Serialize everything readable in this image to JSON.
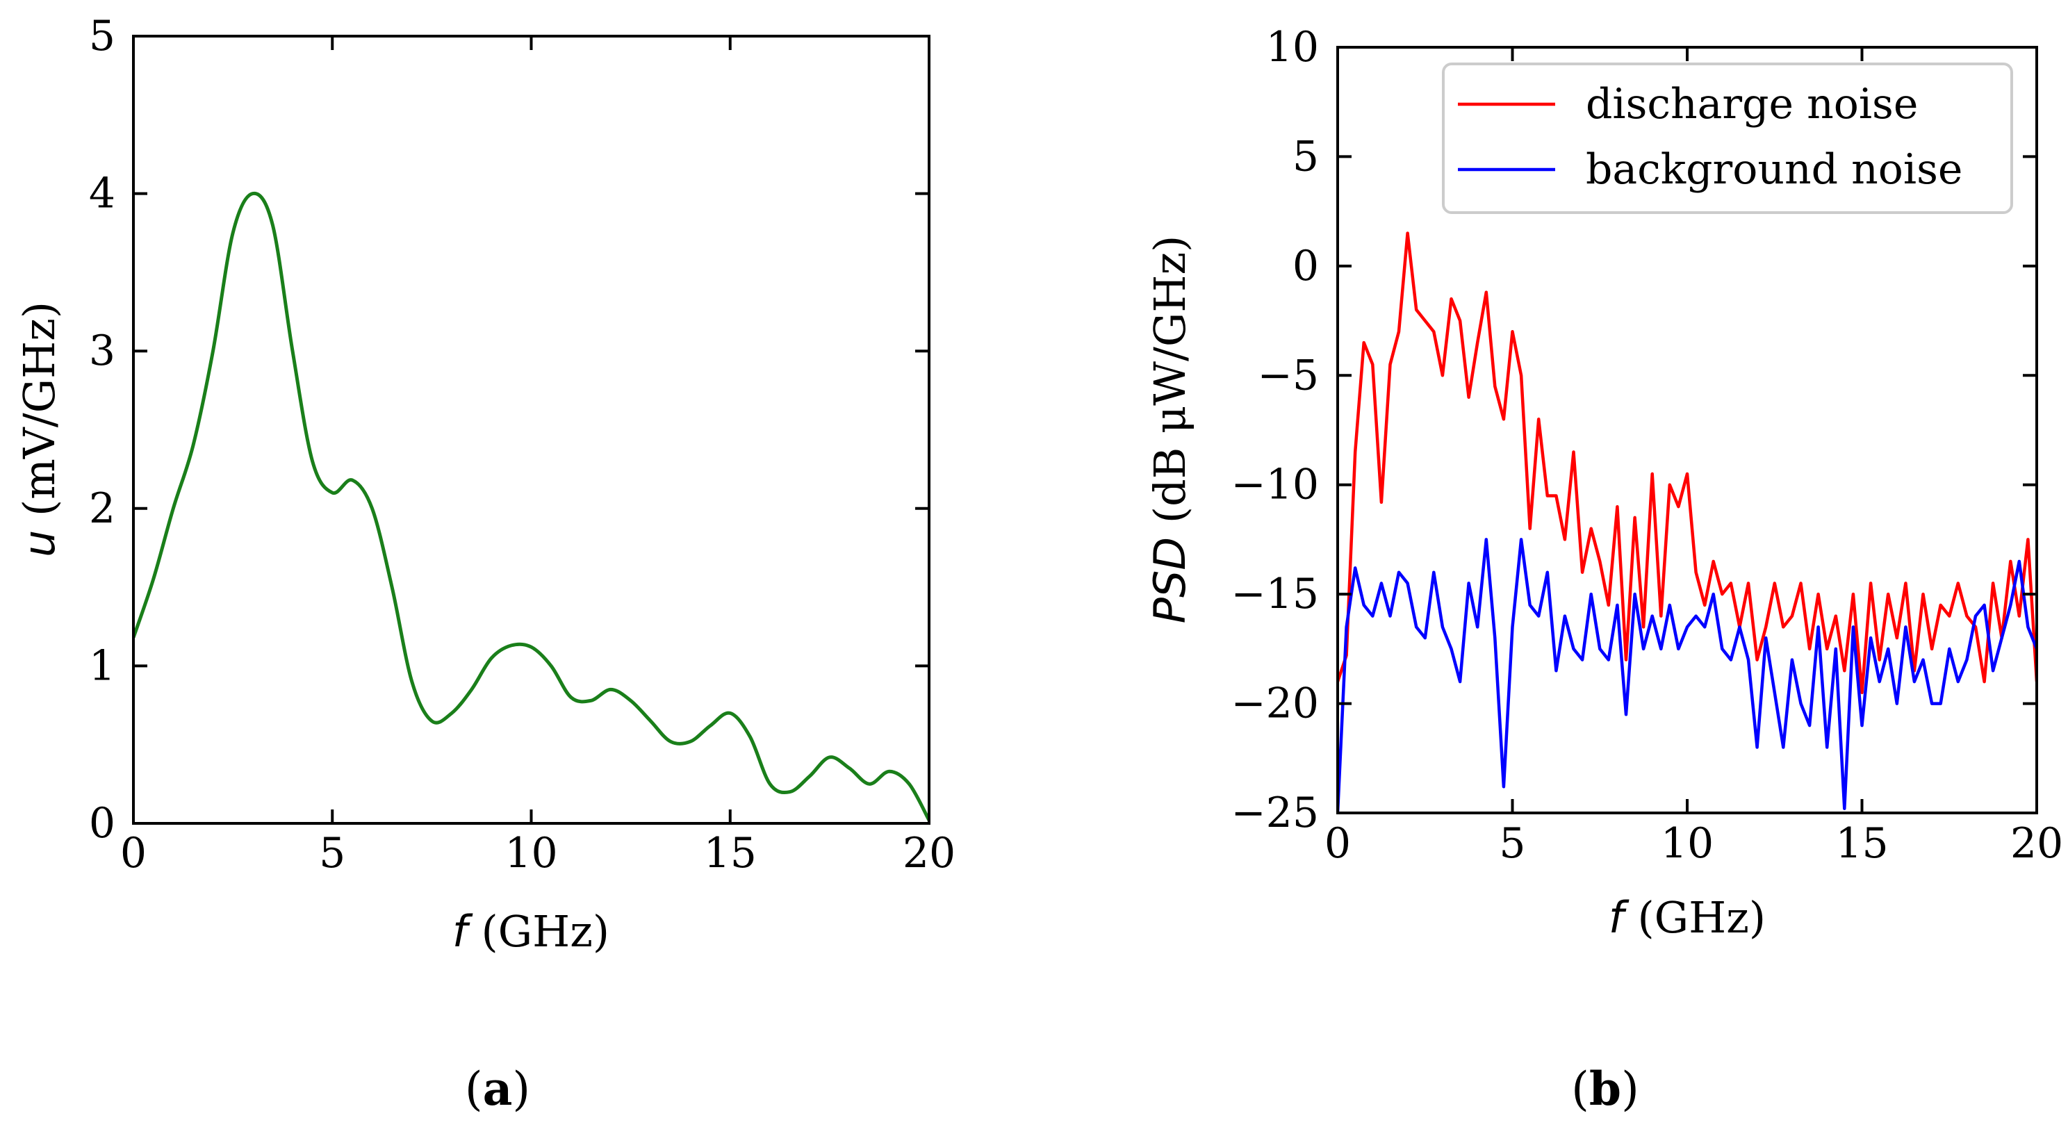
{
  "chart_data": [
    {
      "id": "a",
      "type": "line",
      "panel_label": {
        "open": "(",
        "letter": "a",
        "close": ")"
      },
      "xlabel": {
        "symbol": "f",
        "unit": " (GHz)"
      },
      "ylabel": {
        "symbol": "u",
        "unit": " (mV/GHz)"
      },
      "xlim": [
        0,
        20
      ],
      "ylim": [
        0,
        5
      ],
      "xticks": [
        0,
        5,
        10,
        15,
        20
      ],
      "yticks": [
        0,
        1,
        2,
        3,
        4,
        5
      ],
      "xtick_labels": [
        "0",
        "5",
        "10",
        "15",
        "20"
      ],
      "ytick_labels": [
        "0",
        "1",
        "2",
        "3",
        "4",
        "5"
      ],
      "grid": false,
      "series": [
        {
          "name": "u",
          "color": "#1a7f1a",
          "x": [
            0,
            0.5,
            1,
            1.5,
            2,
            2.5,
            3,
            3.5,
            4,
            4.5,
            5,
            5.5,
            6,
            6.5,
            7,
            7.5,
            8,
            8.5,
            9,
            9.5,
            10,
            10.5,
            11,
            11.5,
            12,
            12.5,
            13,
            13.5,
            14,
            14.5,
            15,
            15.5,
            16,
            16.5,
            17,
            17.5,
            18,
            18.5,
            19,
            19.5,
            20
          ],
          "y": [
            1.18,
            1.55,
            2.0,
            2.4,
            3.0,
            3.75,
            4.0,
            3.8,
            3.0,
            2.3,
            2.1,
            2.18,
            2.0,
            1.5,
            0.9,
            0.65,
            0.7,
            0.85,
            1.05,
            1.13,
            1.12,
            1.0,
            0.8,
            0.78,
            0.85,
            0.78,
            0.65,
            0.52,
            0.52,
            0.62,
            0.7,
            0.55,
            0.25,
            0.2,
            0.3,
            0.42,
            0.35,
            0.25,
            0.33,
            0.25,
            0.02
          ]
        }
      ]
    },
    {
      "id": "b",
      "type": "line",
      "panel_label": {
        "open": "(",
        "letter": "b",
        "close": ")"
      },
      "xlabel": {
        "symbol": "f",
        "unit": " (GHz)"
      },
      "ylabel": {
        "symbol": "PSD",
        "unit": " (dB μW/GHz)"
      },
      "xlim": [
        0,
        20
      ],
      "ylim": [
        -25,
        10
      ],
      "xticks": [
        0,
        5,
        10,
        15,
        20
      ],
      "yticks": [
        -25,
        -20,
        -15,
        -10,
        -5,
        0,
        5,
        10
      ],
      "xtick_labels": [
        "0",
        "5",
        "10",
        "15",
        "20"
      ],
      "ytick_labels": [
        "−25",
        "−20",
        "−15",
        "−10",
        "−5",
        "0",
        "5",
        "10"
      ],
      "grid": false,
      "legend": {
        "position": "top-right"
      },
      "series": [
        {
          "name": "discharge noise",
          "color": "#ff0000",
          "x": [
            0,
            0.25,
            0.5,
            0.75,
            1,
            1.25,
            1.5,
            1.75,
            2,
            2.25,
            2.5,
            2.75,
            3,
            3.25,
            3.5,
            3.75,
            4,
            4.25,
            4.5,
            4.75,
            5,
            5.25,
            5.5,
            5.75,
            6,
            6.25,
            6.5,
            6.75,
            7,
            7.25,
            7.5,
            7.75,
            8,
            8.25,
            8.5,
            8.75,
            9,
            9.25,
            9.5,
            9.75,
            10,
            10.25,
            10.5,
            10.75,
            11,
            11.25,
            11.5,
            11.75,
            12,
            12.25,
            12.5,
            12.75,
            13,
            13.25,
            13.5,
            13.75,
            14,
            14.25,
            14.5,
            14.75,
            15,
            15.25,
            15.5,
            15.75,
            16,
            16.25,
            16.5,
            16.75,
            17,
            17.25,
            17.5,
            17.75,
            18,
            18.25,
            18.5,
            18.75,
            19,
            19.25,
            19.5,
            19.75,
            20
          ],
          "y": [
            -19,
            -17.8,
            -8.5,
            -3.5,
            -4.5,
            -10.8,
            -4.5,
            -3.0,
            1.5,
            -2.0,
            -2.5,
            -3.0,
            -5.0,
            -1.5,
            -2.5,
            -6.0,
            -3.5,
            -1.2,
            -5.5,
            -7.0,
            -3.0,
            -5.0,
            -12.0,
            -7.0,
            -10.5,
            -10.5,
            -12.5,
            -8.5,
            -14.0,
            -12.0,
            -13.5,
            -15.5,
            -11.0,
            -18.0,
            -11.5,
            -16.5,
            -9.5,
            -16.0,
            -10.0,
            -11.0,
            -9.5,
            -14.0,
            -15.5,
            -13.5,
            -15.0,
            -14.5,
            -16.5,
            -14.5,
            -18.0,
            -16.5,
            -14.5,
            -16.5,
            -16.0,
            -14.5,
            -17.5,
            -15.0,
            -17.5,
            -16.0,
            -18.5,
            -15.0,
            -19.5,
            -14.5,
            -18.0,
            -15.0,
            -17.0,
            -14.5,
            -18.5,
            -15.0,
            -17.5,
            -15.5,
            -16.0,
            -14.5,
            -16.0,
            -16.5,
            -19.0,
            -14.5,
            -17.0,
            -13.5,
            -16.0,
            -12.5,
            -19.0
          ]
        },
        {
          "name": "background noise",
          "color": "#0000ff",
          "x": [
            0,
            0.25,
            0.5,
            0.75,
            1,
            1.25,
            1.5,
            1.75,
            2,
            2.25,
            2.5,
            2.75,
            3,
            3.25,
            3.5,
            3.75,
            4,
            4.25,
            4.5,
            4.75,
            5,
            5.25,
            5.5,
            5.75,
            6,
            6.25,
            6.5,
            6.75,
            7,
            7.25,
            7.5,
            7.75,
            8,
            8.25,
            8.5,
            8.75,
            9,
            9.25,
            9.5,
            9.75,
            10,
            10.25,
            10.5,
            10.75,
            11,
            11.25,
            11.5,
            11.75,
            12,
            12.25,
            12.5,
            12.75,
            13,
            13.25,
            13.5,
            13.75,
            14,
            14.25,
            14.5,
            14.75,
            15,
            15.25,
            15.5,
            15.75,
            16,
            16.25,
            16.5,
            16.75,
            17,
            17.25,
            17.5,
            17.75,
            18,
            18.25,
            18.5,
            18.75,
            19,
            19.25,
            19.5,
            19.75,
            20
          ],
          "y": [
            -25,
            -16.5,
            -13.8,
            -15.5,
            -16.0,
            -14.5,
            -16.0,
            -14.0,
            -14.5,
            -16.5,
            -17.0,
            -14.0,
            -16.5,
            -17.5,
            -19.0,
            -14.5,
            -16.5,
            -12.5,
            -17.0,
            -23.8,
            -16.5,
            -12.5,
            -15.5,
            -16.0,
            -14.0,
            -18.5,
            -16.0,
            -17.5,
            -18.0,
            -15.0,
            -17.5,
            -18.0,
            -15.5,
            -20.5,
            -15.0,
            -17.5,
            -16.0,
            -17.5,
            -15.5,
            -17.5,
            -16.5,
            -16.0,
            -16.5,
            -15.0,
            -17.5,
            -18.0,
            -16.5,
            -18.0,
            -22.0,
            -17.0,
            -19.5,
            -22.0,
            -18.0,
            -20.0,
            -21.0,
            -16.5,
            -22.0,
            -17.5,
            -24.8,
            -16.5,
            -21.0,
            -17.0,
            -19.0,
            -17.5,
            -20.0,
            -16.5,
            -19.0,
            -18.0,
            -20.0,
            -20.0,
            -17.5,
            -19.0,
            -18.0,
            -16.0,
            -15.5,
            -18.5,
            -17.0,
            -15.5,
            -13.5,
            -16.5,
            -17.5
          ]
        }
      ]
    }
  ]
}
